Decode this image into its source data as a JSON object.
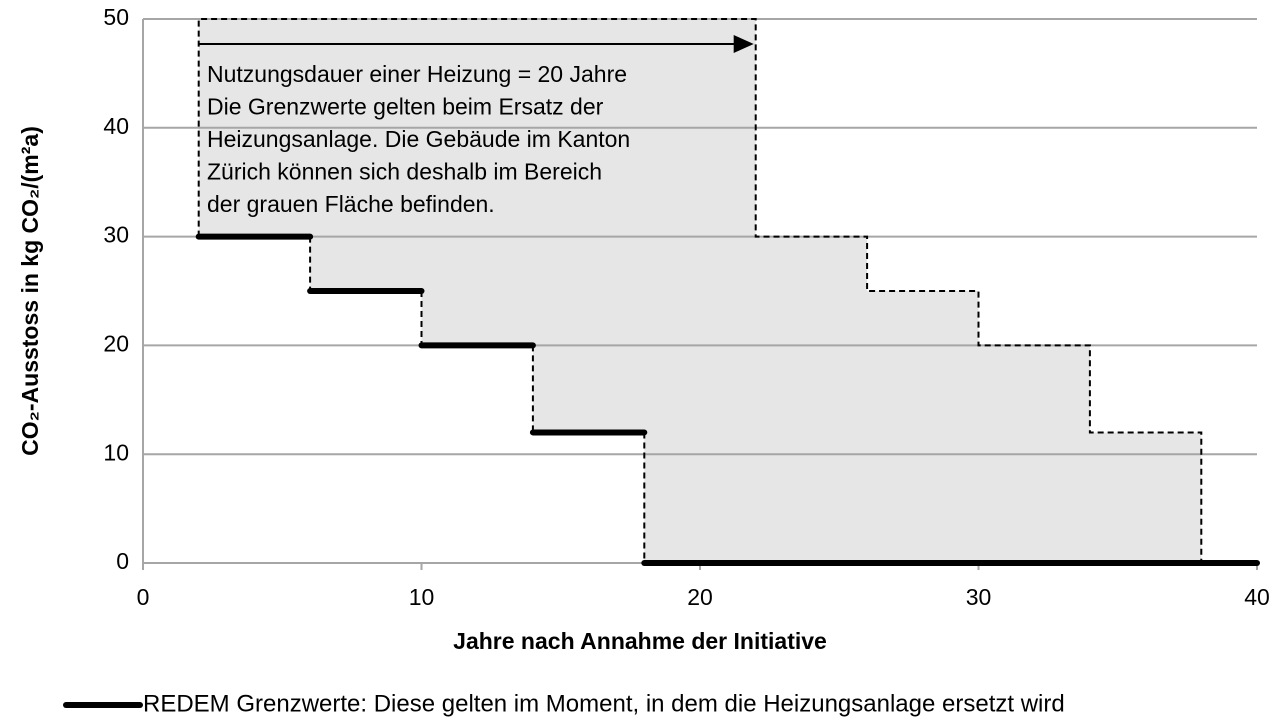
{
  "chart_data": {
    "type": "step",
    "ylabel": "CO₂-Ausstoss in kg CO₂/(m²a)",
    "xlabel": "Jahre nach Annahme der Initiative",
    "annotation": [
      "Nutzungsdauer einer Heizung = 20 Jahre",
      "Die Grenzwerte gelten beim Ersatz der",
      "Heizungsanlage. Die Gebäude im Kanton",
      "Zürich können sich deshalb im Bereich",
      "der grauen Fläche befinden."
    ],
    "series": [
      {
        "name": "REDEM Grenzwerte: Diese gelten im Moment, in dem die Heizungsanlage ersetzt wird",
        "color": "#000000",
        "x": [
          2,
          6,
          10,
          14,
          18
        ],
        "values": [
          30,
          25,
          20,
          12,
          0
        ]
      },
      {
        "color": "#000000",
        "dashed": true,
        "x": [
          2,
          22,
          26,
          30,
          34,
          38
        ],
        "values": [
          50,
          30,
          25,
          20,
          12,
          0
        ]
      }
    ],
    "area_color": "#e6e6e6",
    "xlim": [
      0,
      40
    ],
    "xticks": [
      0,
      10,
      20,
      30,
      40
    ],
    "ylim": [
      0,
      50
    ],
    "yticks": [
      0,
      10,
      20,
      30,
      40,
      50
    ],
    "grid": true
  }
}
